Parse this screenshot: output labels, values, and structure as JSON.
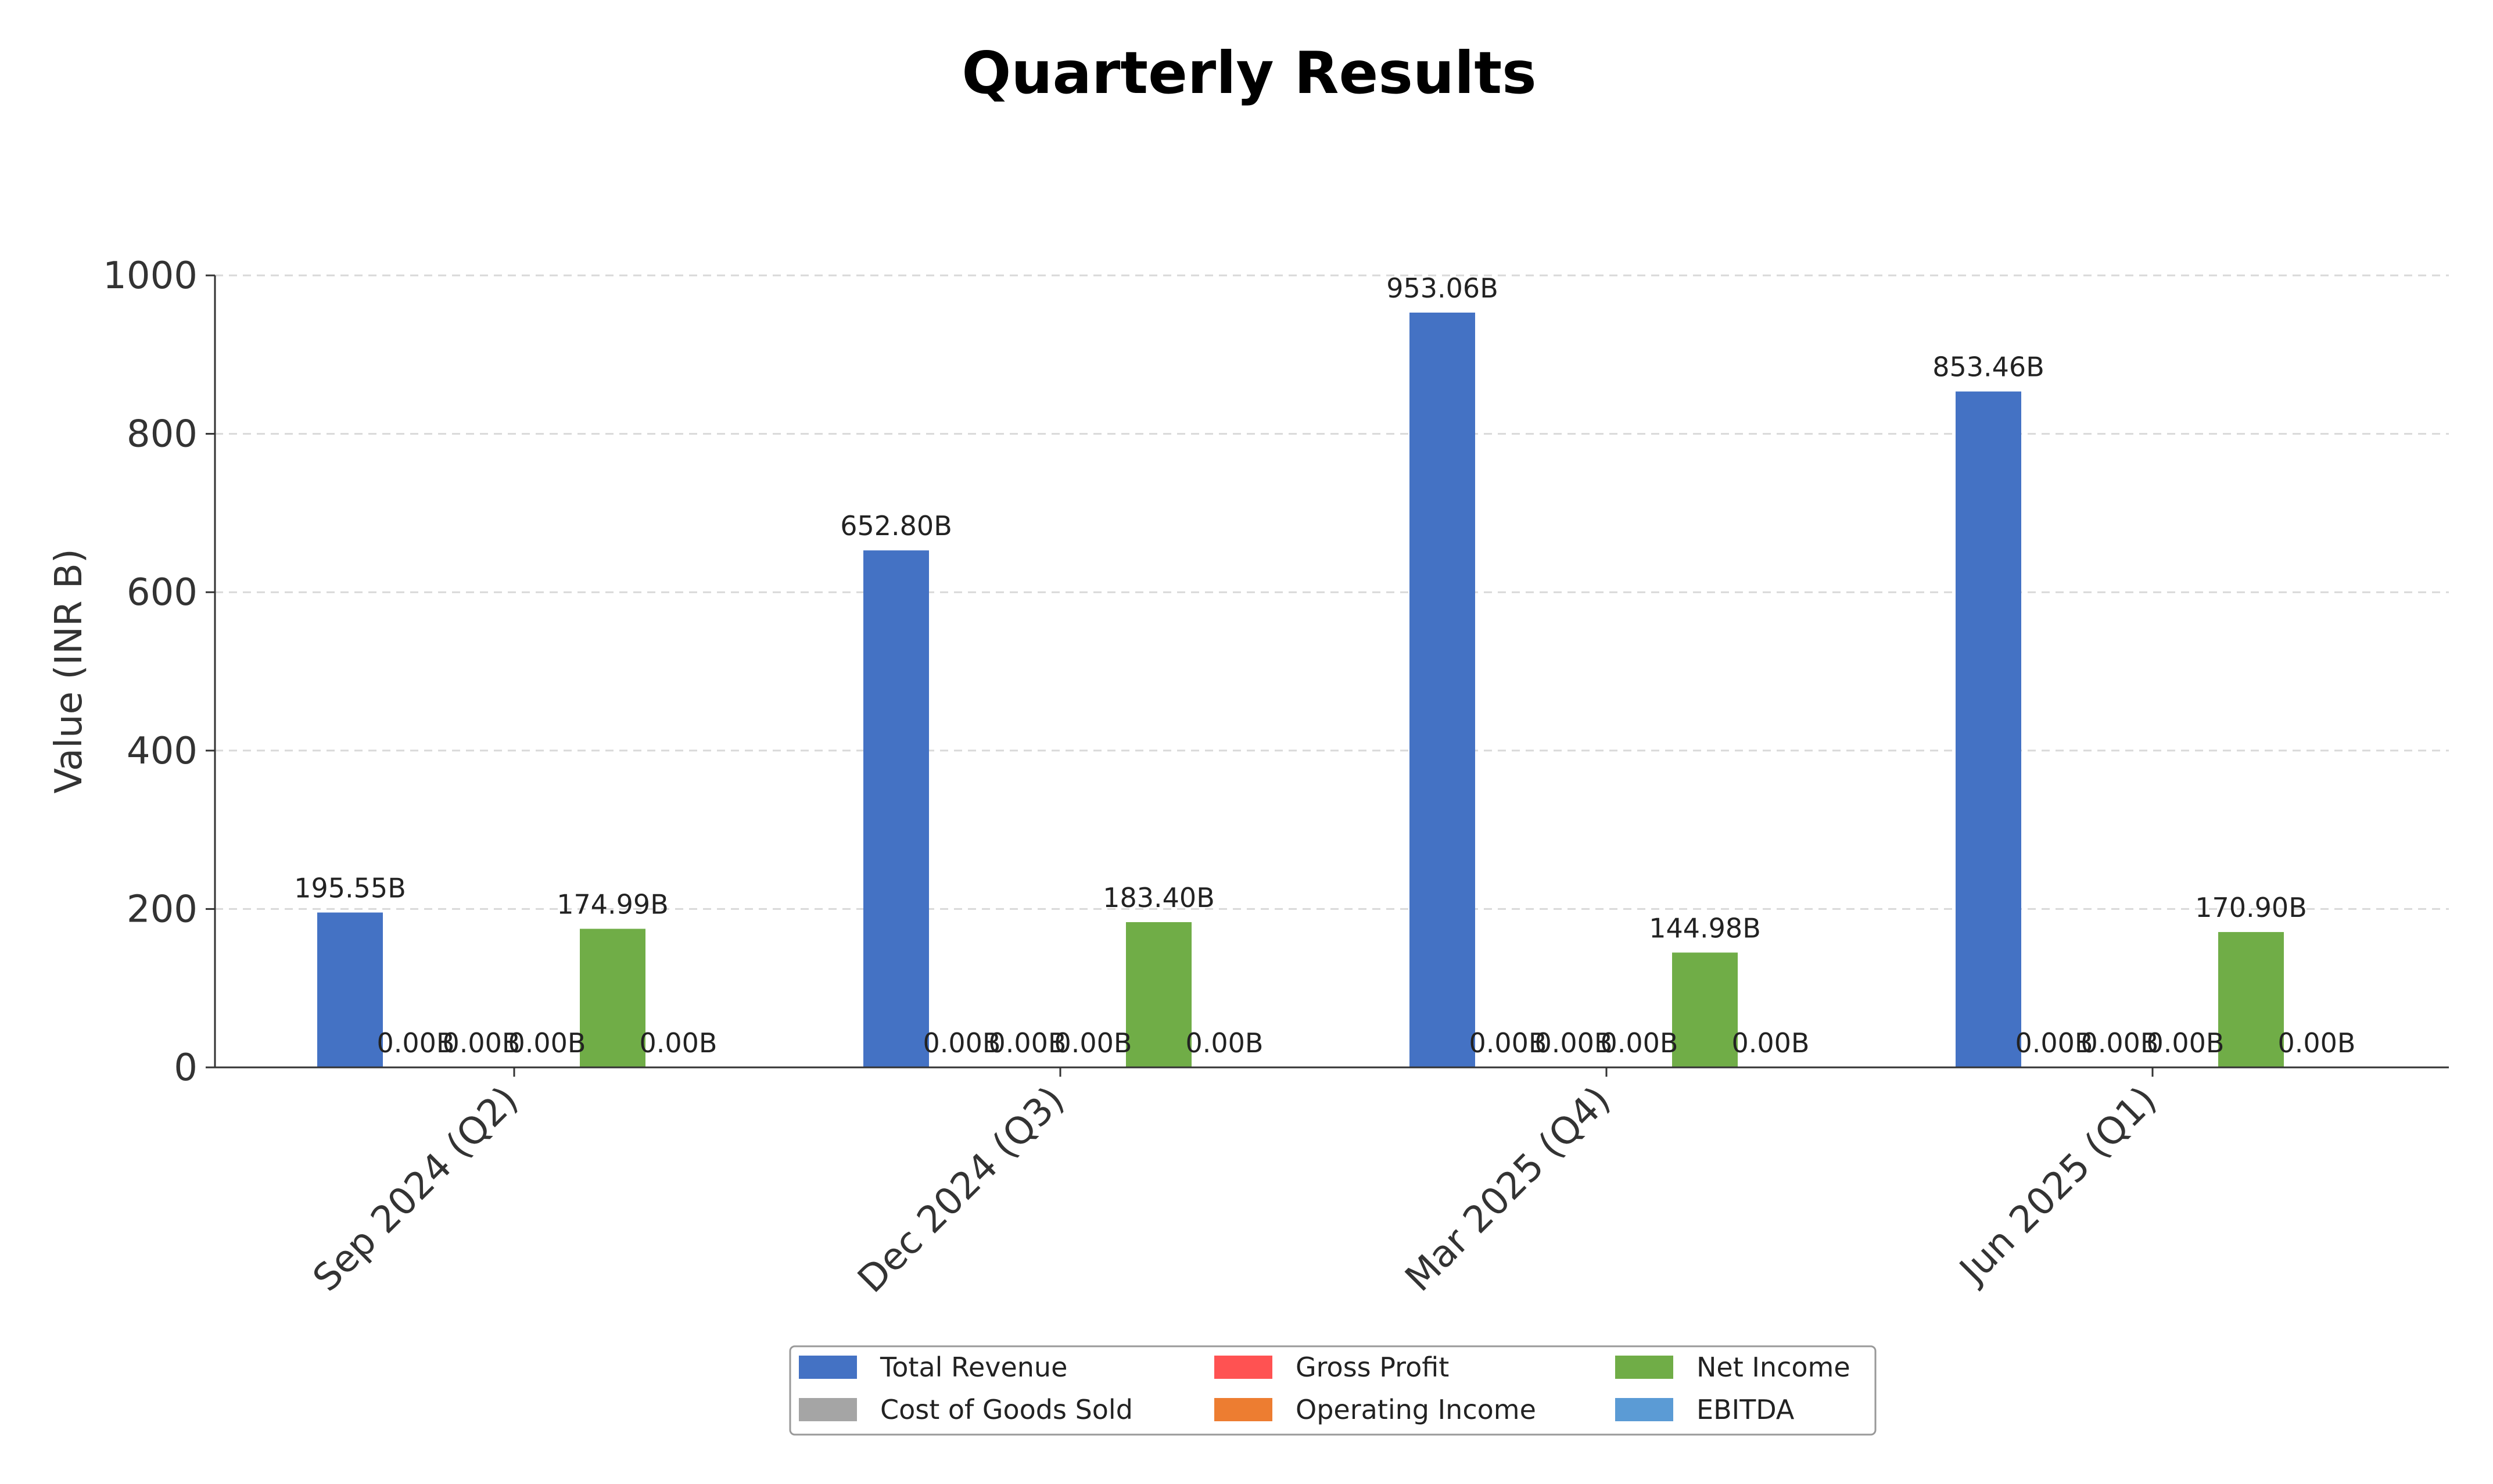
{
  "chart_data": {
    "type": "bar",
    "title": "Quarterly Results",
    "xlabel": "",
    "ylabel": "Value (INR B)",
    "ylim": [
      0,
      1000
    ],
    "yticks": [
      0,
      200,
      400,
      600,
      800,
      1000
    ],
    "grid": true,
    "legend_position": "bottom-center",
    "categories": [
      "Sep 2024 (Q2)",
      "Dec 2024 (Q3)",
      "Mar 2025 (Q4)",
      "Jun 2025 (Q1)"
    ],
    "series": [
      {
        "name": "Total Revenue",
        "color": "#4472C4",
        "values": [
          195.55,
          652.8,
          953.06,
          853.46
        ],
        "labels": [
          "195.55B",
          "652.80B",
          "953.06B",
          "853.46B"
        ]
      },
      {
        "name": "Cost of Goods Sold",
        "color": "#A5A5A5",
        "values": [
          0,
          0,
          0,
          0
        ],
        "labels": [
          "0.00B",
          "0.00B",
          "0.00B",
          "0.00B"
        ]
      },
      {
        "name": "Gross Profit",
        "color": "#FF5252",
        "values": [
          0,
          0,
          0,
          0
        ],
        "labels": [
          "0.00B",
          "0.00B",
          "0.00B",
          "0.00B"
        ]
      },
      {
        "name": "Operating Income",
        "color": "#ED7D31",
        "values": [
          0,
          0,
          0,
          0
        ],
        "labels": [
          "0.00B",
          "0.00B",
          "0.00B",
          "0.00B"
        ]
      },
      {
        "name": "Net Income",
        "color": "#70AD47",
        "values": [
          174.99,
          183.4,
          144.98,
          170.9
        ],
        "labels": [
          "174.99B",
          "183.40B",
          "144.98B",
          "170.90B"
        ]
      },
      {
        "name": "EBITDA",
        "color": "#5B9BD5",
        "values": [
          0,
          0,
          0,
          0
        ],
        "labels": [
          "0.00B",
          "0.00B",
          "0.00B",
          "0.00B"
        ]
      }
    ]
  }
}
